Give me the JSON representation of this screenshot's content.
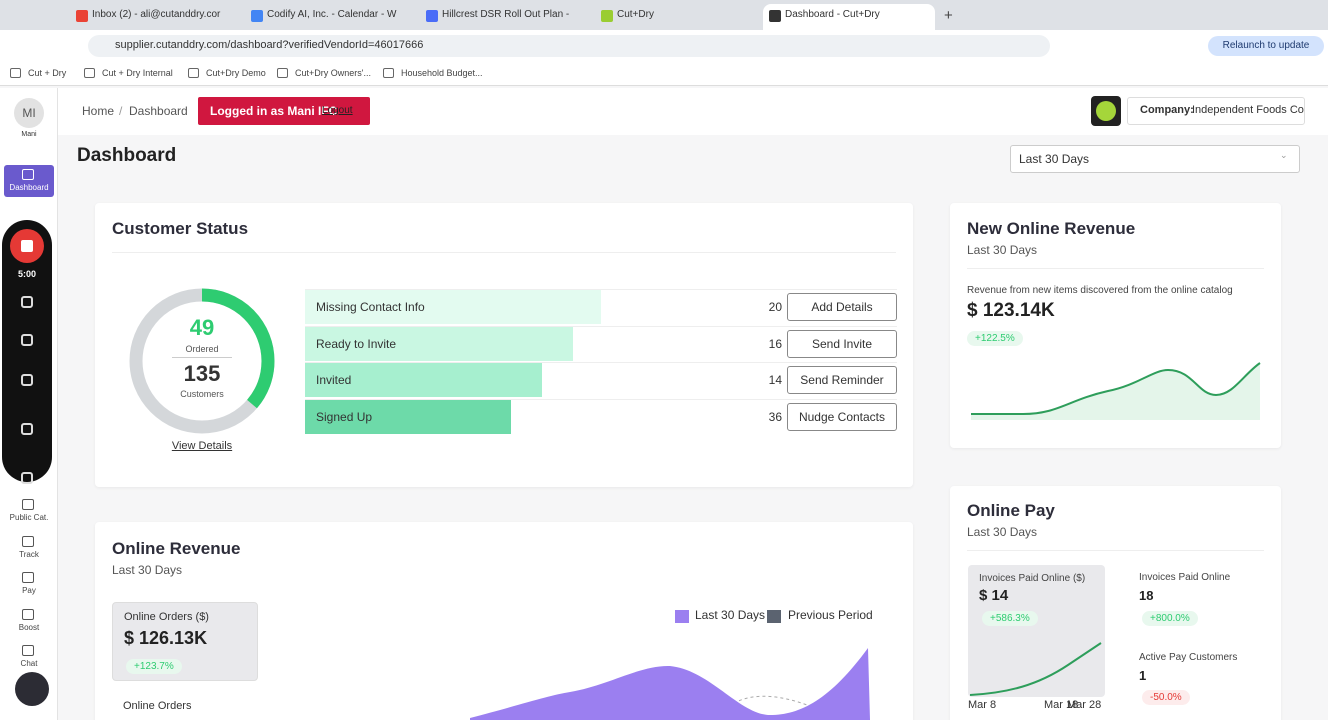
{
  "browser": {
    "tabs": [
      "Inbox (2) - ali@cutanddry.cor",
      "Codify AI, Inc. - Calendar - W",
      "Hillcrest DSR Roll Out Plan - G",
      "Cut+Dry",
      "Dashboard - Cut+Dry"
    ],
    "url": "supplier.cutanddry.com/dashboard?verifiedVendorId=46017666",
    "relaunch": "Relaunch to update",
    "bookmarks": [
      "Cut + Dry",
      "Cut + Dry Internal",
      "Cut+Dry Demo",
      "Cut+Dry Owners'...",
      "Household Budget..."
    ]
  },
  "sidebar": {
    "avatar": "MI",
    "user": "Mani",
    "items": [
      "Dashboard",
      "Public Cat.",
      "Track",
      "Pay",
      "Boost",
      "Chat"
    ],
    "timer": "5:00"
  },
  "header": {
    "breadcrumb": [
      "Home",
      "Dashboard"
    ],
    "banner": "Logged in as Mani IFC",
    "logout": "Logout",
    "company_label": "Company:",
    "company": "Independent Foods Co"
  },
  "page": {
    "title": "Dashboard",
    "range": "Last 30 Days"
  },
  "customer_status": {
    "title": "Customer Status",
    "ordered": 49,
    "ordered_label": "Ordered",
    "customers": 135,
    "customers_label": "Customers",
    "view_details": "View Details",
    "rows": [
      {
        "label": "Missing Contact Info",
        "count": 20,
        "action": "Add Details"
      },
      {
        "label": "Ready to Invite",
        "count": 16,
        "action": "Send Invite"
      },
      {
        "label": "Invited",
        "count": 14,
        "action": "Send Reminder"
      },
      {
        "label": "Signed Up",
        "count": 36,
        "action": "Nudge Contacts"
      }
    ]
  },
  "new_online_revenue": {
    "title": "New Online Revenue",
    "subtitle": "Last 30 Days",
    "description": "Revenue from new items discovered from the online catalog",
    "value": "$ 123.14K",
    "change": "+122.5%"
  },
  "online_pay": {
    "title": "Online Pay",
    "subtitle": "Last 30 Days",
    "paid_dollars_label": "Invoices Paid Online ($)",
    "paid_dollars": "$ 14",
    "paid_dollars_change": "+586.3%",
    "x_labels": [
      "Mar 8",
      "Mar 18",
      "Mar 28"
    ],
    "paid_online_label": "Invoices Paid Online",
    "paid_online": "18",
    "paid_online_change": "+800.0%",
    "active_label": "Active Pay Customers",
    "active": "1",
    "active_change": "-50.0%"
  },
  "online_revenue": {
    "title": "Online Revenue",
    "subtitle": "Last 30 Days",
    "orders_dollars_label": "Online Orders ($)",
    "orders_dollars": "$ 126.13K",
    "orders_dollars_change": "+123.7%",
    "orders_label": "Online Orders",
    "legend": [
      "Last 30 Days",
      "Previous Period"
    ]
  }
}
